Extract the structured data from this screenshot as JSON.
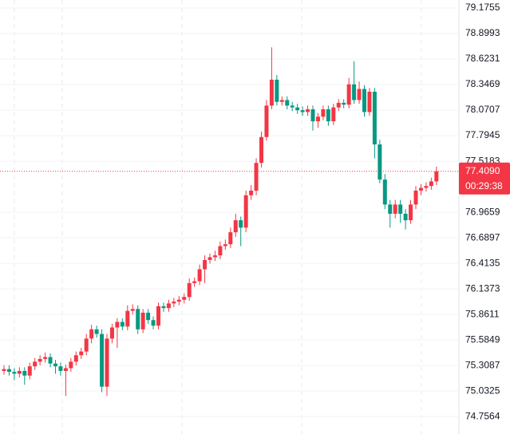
{
  "chart_data": {
    "type": "candlestick",
    "up_color": "#f23645",
    "down_color": "#089981",
    "ylim": [
      74.568,
      79.262
    ],
    "yticks": [
      74.7564,
      75.0325,
      75.3087,
      75.5849,
      75.8611,
      76.1373,
      76.4135,
      76.6897,
      76.9659,
      77.5183,
      77.7945,
      78.0707,
      78.3469,
      78.6231,
      78.8993,
      79.1755
    ],
    "grid": true,
    "open": [
      75.25,
      75.27,
      75.24,
      75.22,
      75.25,
      75.2,
      75.3,
      75.35,
      75.38,
      75.4,
      75.33,
      75.3,
      75.25,
      75.28,
      75.35,
      75.42,
      75.46,
      75.6,
      75.7,
      75.65,
      75.08,
      75.6,
      75.72,
      75.78,
      75.73,
      75.9,
      75.92,
      75.7,
      75.88,
      75.8,
      75.74,
      75.95,
      75.93,
      75.98,
      76.0,
      76.02,
      76.05,
      76.2,
      76.22,
      76.35,
      76.45,
      76.48,
      76.5,
      76.6,
      76.62,
      76.75,
      76.88,
      76.8,
      77.15,
      77.2,
      77.5,
      77.78,
      78.12,
      78.4,
      78.16,
      78.18,
      78.12,
      78.1,
      78.07,
      78.05,
      78.08,
      77.95,
      78.0,
      78.08,
      77.95,
      78.1,
      78.15,
      78.13,
      78.35,
      78.18,
      78.3,
      78.05,
      78.27,
      77.7,
      77.32,
      77.05,
      76.95,
      77.05,
      76.95,
      76.88,
      77.05,
      77.2,
      77.23,
      77.25,
      77.3
    ],
    "high": [
      75.31,
      75.31,
      75.28,
      75.29,
      75.29,
      75.34,
      75.39,
      75.42,
      75.45,
      75.44,
      75.37,
      75.34,
      75.32,
      75.39,
      75.46,
      75.5,
      75.65,
      75.75,
      75.74,
      75.7,
      75.65,
      75.76,
      75.82,
      75.82,
      75.96,
      75.97,
      75.96,
      75.92,
      75.92,
      75.84,
      75.99,
      75.99,
      76.02,
      76.04,
      76.06,
      76.09,
      76.25,
      76.26,
      76.4,
      76.5,
      76.52,
      76.55,
      76.65,
      76.67,
      76.8,
      76.95,
      76.92,
      77.2,
      77.26,
      77.55,
      77.84,
      78.18,
      78.75,
      78.45,
      78.22,
      78.22,
      78.16,
      78.14,
      78.11,
      78.12,
      78.12,
      78.04,
      78.12,
      78.12,
      78.14,
      78.19,
      78.19,
      78.42,
      78.6,
      78.38,
      78.34,
      78.31,
      78.31,
      77.75,
      77.38,
      77.1,
      77.1,
      77.1,
      77.0,
      77.1,
      77.25,
      77.27,
      77.29,
      77.34,
      77.46
    ],
    "low": [
      75.21,
      75.2,
      75.15,
      75.18,
      75.1,
      75.16,
      75.26,
      75.31,
      75.34,
      75.29,
      75.22,
      75.2,
      74.98,
      75.24,
      75.31,
      75.38,
      75.42,
      75.55,
      75.61,
      75.02,
      74.98,
      75.55,
      75.5,
      75.69,
      75.69,
      75.86,
      75.65,
      75.66,
      75.76,
      75.7,
      75.7,
      75.89,
      75.89,
      75.94,
      75.96,
      75.98,
      76.01,
      76.16,
      76.18,
      76.2,
      76.41,
      76.44,
      76.46,
      76.56,
      76.58,
      76.7,
      76.6,
      76.75,
      77.1,
      77.15,
      77.45,
      77.74,
      78.08,
      78.12,
      78.12,
      78.08,
      78.06,
      78.03,
      78.01,
      78.01,
      77.85,
      77.88,
      77.96,
      77.9,
      77.91,
      78.06,
      78.09,
      78.09,
      78.14,
      78.14,
      78.0,
      78.01,
      77.55,
      77.28,
      77.0,
      76.8,
      76.9,
      76.85,
      76.78,
      76.84,
      77.0,
      77.15,
      77.19,
      77.21,
      77.26
    ],
    "close": [
      75.27,
      75.24,
      75.22,
      75.25,
      75.2,
      75.3,
      75.35,
      75.38,
      75.4,
      75.33,
      75.3,
      75.25,
      75.28,
      75.35,
      75.42,
      75.46,
      75.6,
      75.7,
      75.65,
      75.08,
      75.6,
      75.72,
      75.78,
      75.73,
      75.9,
      75.92,
      75.7,
      75.88,
      75.8,
      75.74,
      75.95,
      75.93,
      75.98,
      76.0,
      76.02,
      76.05,
      76.2,
      76.22,
      76.35,
      76.45,
      76.48,
      76.5,
      76.6,
      76.62,
      76.75,
      76.88,
      76.8,
      77.15,
      77.2,
      77.5,
      77.78,
      78.12,
      78.4,
      78.16,
      78.18,
      78.12,
      78.1,
      78.07,
      78.05,
      78.08,
      77.95,
      78.0,
      78.08,
      77.95,
      78.1,
      78.15,
      78.13,
      78.35,
      78.18,
      78.3,
      78.05,
      78.27,
      77.7,
      77.32,
      77.05,
      76.95,
      77.05,
      76.95,
      76.88,
      77.05,
      77.2,
      77.23,
      77.25,
      77.3,
      77.409
    ],
    "current_price": {
      "value": 77.409,
      "label": "77.4090"
    },
    "countdown": "00:29:38"
  }
}
